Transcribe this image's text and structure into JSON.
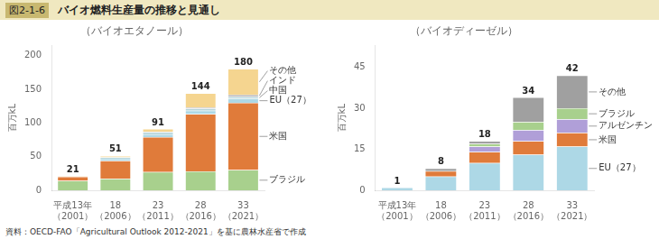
{
  "title": "バイオ燃料生産量の推移と見通し",
  "annotations": [
    "図2-1-6",
    "資料：OECD-FAO「Agricultural Outlook 2012-2021」を基に農林水産省で作成"
  ],
  "chart_data": [
    {
      "type": "bar",
      "title": "（バイオエタノール）",
      "y_label": "百万kL",
      "stacked": true,
      "grid": false,
      "categories": [
        "平成13年\n（2001）",
        "18\n（2006）",
        "23\n（2011）",
        "28\n（2016）",
        "33\n（2021）"
      ],
      "series": [
        {
          "name": "ブラジル",
          "color": "#a8d08d",
          "values": [
            14,
            17,
            27,
            28,
            30
          ]
        },
        {
          "name": "米国",
          "color": "#e07b3a",
          "values": [
            6,
            27,
            52,
            85,
            100
          ]
        },
        {
          "name": "EU（27）",
          "color": "#add8e6",
          "values": [
            0,
            3,
            4,
            5,
            6
          ]
        },
        {
          "name": "中国",
          "color": "#b5d5dc",
          "values": [
            0,
            2,
            3,
            3,
            3
          ]
        },
        {
          "name": "インド",
          "color": "#b5b5b5",
          "values": [
            0,
            0,
            1,
            2,
            3
          ]
        },
        {
          "name": "その他",
          "color": "#f5d590",
          "values": [
            1,
            2,
            4,
            21,
            38
          ]
        }
      ],
      "totals": [
        21,
        51,
        91,
        144,
        180
      ],
      "ylim": [
        0,
        215
      ],
      "yticks": [
        0,
        50,
        100,
        150,
        200
      ]
    },
    {
      "type": "bar",
      "title": "（バイオディーゼル）",
      "y_label": "百万kL",
      "stacked": true,
      "grid": false,
      "categories": [
        "平成13年\n（2001）",
        "18\n（2006）",
        "23\n（2011）",
        "28\n（2016）",
        "33\n（2021）"
      ],
      "series": [
        {
          "name": "EU（27）",
          "color": "#add8e6",
          "values": [
            1,
            5,
            10,
            13,
            16
          ]
        },
        {
          "name": "米国",
          "color": "#e07b3a",
          "values": [
            0,
            2,
            4,
            5,
            5
          ]
        },
        {
          "name": "アルゼンチン",
          "color": "#b09fd8",
          "values": [
            0,
            0,
            2,
            4,
            5
          ]
        },
        {
          "name": "ブラジル",
          "color": "#a8d08d",
          "values": [
            0,
            0,
            1,
            3,
            4
          ]
        },
        {
          "name": "その他",
          "color": "#a0a0a0",
          "values": [
            0,
            1,
            1,
            9,
            12
          ]
        }
      ],
      "totals": [
        1,
        8,
        18,
        34,
        42
      ],
      "ylim": [
        0,
        53
      ],
      "yticks": [
        0,
        15,
        30,
        45
      ]
    }
  ]
}
